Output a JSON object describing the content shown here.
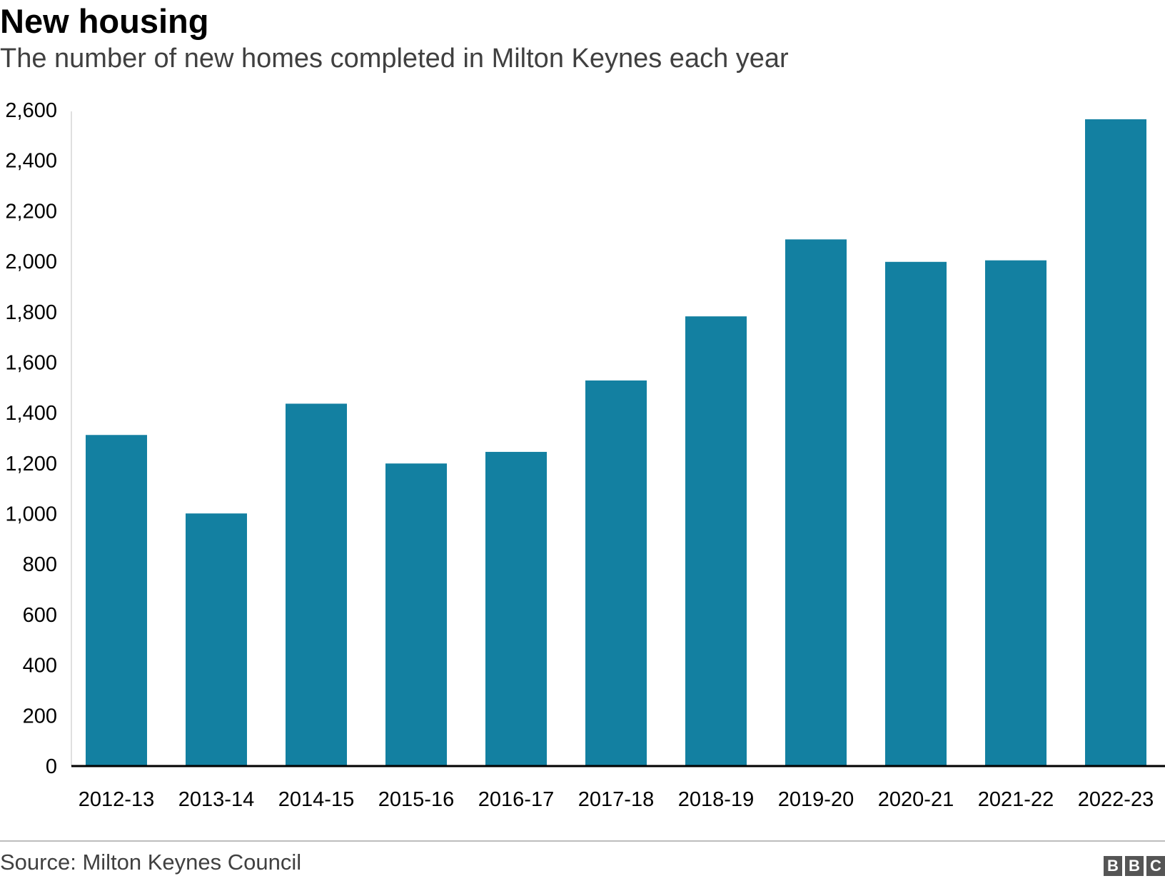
{
  "chart_data": {
    "type": "bar",
    "title": "New housing",
    "subtitle": "The number of new homes completed in Milton Keynes each year",
    "categories": [
      "2012-13",
      "2013-14",
      "2014-15",
      "2015-16",
      "2016-17",
      "2017-18",
      "2018-19",
      "2019-20",
      "2020-21",
      "2021-22",
      "2022-23"
    ],
    "values": [
      1312,
      1001,
      1436,
      1199,
      1245,
      1528,
      1782,
      2087,
      1998,
      2004,
      2563
    ],
    "ylim": [
      0,
      2600
    ],
    "yticks": [
      0,
      200,
      400,
      600,
      800,
      1000,
      1200,
      1400,
      1600,
      1800,
      2000,
      2200,
      2400,
      2600
    ],
    "ytick_labels": [
      "0",
      "200",
      "400",
      "600",
      "800",
      "1,000",
      "1,200",
      "1,400",
      "1,600",
      "1,800",
      "2,000",
      "2,200",
      "2,400",
      "2,600"
    ],
    "xlabel": "",
    "ylabel": "",
    "grid": false,
    "bar_color": "#1380a1",
    "axis_color": "#000000"
  },
  "footer": {
    "source": "Source: Milton Keynes Council",
    "logo": [
      "B",
      "B",
      "C"
    ]
  }
}
